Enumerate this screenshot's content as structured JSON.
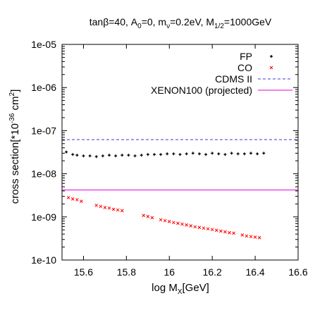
{
  "chart_data": {
    "type": "scatter",
    "title": "tanβ=40, A0=0, mν=0.2eV, M1/2=1000GeV",
    "title_parts": {
      "prefix": "tanβ=40, A",
      "a_sub": "0",
      "mid1": "=0, m",
      "m_sub": "ν",
      "mid2": "=0.2eV, M",
      "M_sub": "1/2",
      "suffix": "=1000GeV"
    },
    "xlabel": "log M_X[GeV]",
    "xlabel_parts": {
      "main": "log M",
      "sub": "X",
      "unit": "[GeV]"
    },
    "ylabel": "cross section[*10^-36 cm^2]",
    "ylabel_parts": {
      "main": "cross section[*10",
      "exp1": "-36",
      "mid": " cm",
      "exp2": "2",
      "end": "]"
    },
    "xlim": [
      15.5,
      16.6
    ],
    "ylim": [
      1e-10,
      1e-05
    ],
    "yscale": "log",
    "x_ticks": [
      "15.6",
      "15.8",
      "16",
      "16.2",
      "16.4",
      "16.6"
    ],
    "x_tick_values": [
      15.6,
      15.8,
      16.0,
      16.2,
      16.4,
      16.6
    ],
    "y_ticks": [
      "1e-10",
      "1e-09",
      "1e-08",
      "1e-07",
      "1e-06",
      "1e-05"
    ],
    "y_tick_values": [
      1e-10,
      1e-09,
      1e-08,
      1e-07,
      1e-06,
      1e-05
    ],
    "legend_position": "top-right",
    "grid": false,
    "series": [
      {
        "name": "FP",
        "kind": "points",
        "marker": "plus",
        "color": "#000000",
        "x": [
          15.52,
          15.55,
          15.57,
          15.6,
          15.63,
          15.66,
          15.69,
          15.72,
          15.75,
          15.78,
          15.81,
          15.84,
          15.87,
          15.9,
          15.93,
          15.96,
          15.99,
          16.02,
          16.05,
          16.08,
          16.11,
          16.14,
          16.17,
          16.2,
          16.23,
          16.26,
          16.29,
          16.32,
          16.35,
          16.38,
          16.41,
          16.44
        ],
        "y": [
          3.2e-08,
          2.8e-08,
          2.7e-08,
          2.6e-08,
          2.6e-08,
          2.5e-08,
          2.6e-08,
          2.7e-08,
          2.6e-08,
          2.7e-08,
          2.7e-08,
          2.6e-08,
          2.7e-08,
          2.8e-08,
          2.8e-08,
          2.8e-08,
          2.9e-08,
          2.9e-08,
          2.8e-08,
          2.9e-08,
          3e-08,
          2.9e-08,
          2.8e-08,
          3e-08,
          2.9e-08,
          2.8e-08,
          3e-08,
          2.9e-08,
          2.9e-08,
          3e-08,
          2.9e-08,
          3e-08
        ]
      },
      {
        "name": "CO",
        "kind": "points",
        "marker": "cross",
        "color": "#ff0000",
        "x": [
          15.53,
          15.55,
          15.57,
          15.59,
          15.66,
          15.68,
          15.7,
          15.72,
          15.74,
          15.76,
          15.78,
          15.88,
          15.9,
          15.92,
          15.96,
          15.98,
          16.0,
          16.02,
          16.04,
          16.06,
          16.08,
          16.1,
          16.12,
          16.14,
          16.16,
          16.18,
          16.2,
          16.22,
          16.24,
          16.26,
          16.28,
          16.3,
          16.34,
          16.36,
          16.38,
          16.4,
          16.42
        ],
        "y": [
          2.8e-09,
          2.6e-09,
          2.5e-09,
          2.3e-09,
          1.85e-09,
          1.75e-09,
          1.65e-09,
          1.6e-09,
          1.5e-09,
          1.45e-09,
          1.4e-09,
          1.08e-09,
          1.02e-09,
          9.6e-10,
          8.6e-10,
          8.2e-10,
          7.8e-10,
          7.4e-10,
          7.1e-10,
          6.8e-10,
          6.5e-10,
          6.2e-10,
          5.9e-10,
          5.7e-10,
          5.5e-10,
          5.3e-10,
          5.1e-10,
          4.9e-10,
          4.7e-10,
          4.5e-10,
          4.3e-10,
          4.2e-10,
          3.8e-10,
          3.6e-10,
          3.5e-10,
          3.4e-10,
          3.3e-10
        ]
      },
      {
        "name": "CDMS II",
        "kind": "hline",
        "style": "dashed",
        "color": "#3b3bdb",
        "y": 6.2e-08
      },
      {
        "name": "XENON100 (projected)",
        "kind": "hline",
        "style": "solid",
        "color": "#e000e0",
        "y": 4.2e-09
      }
    ]
  }
}
